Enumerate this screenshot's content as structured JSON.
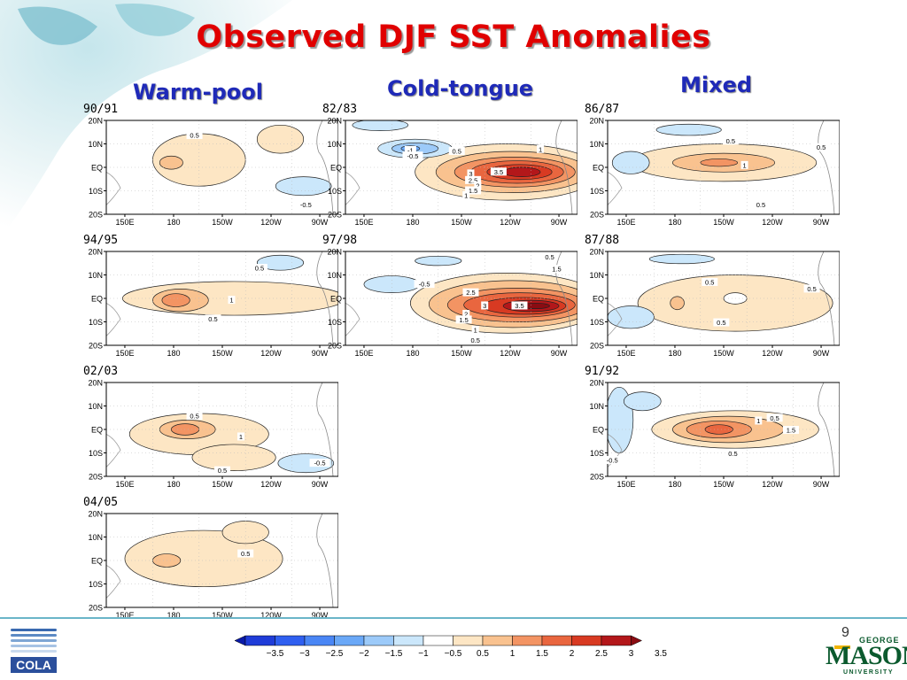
{
  "title": "Observed DJF SST Anomalies",
  "column_headers": {
    "warm_pool": "Warm-pool",
    "cold_tongue": "Cold-tongue",
    "mixed": "Mixed"
  },
  "axes": {
    "y_ticks": [
      "20N",
      "10N",
      "EQ",
      "10S",
      "20S"
    ],
    "x_ticks": [
      "150E",
      "180",
      "150W",
      "120W",
      "90W"
    ]
  },
  "panels": [
    {
      "id": "p9091",
      "label": "90/91",
      "group": "warm_pool",
      "pattern": "w1",
      "contour_labels": [
        {
          "t": "0.5",
          "lon": 0.38,
          "lat": 0.16
        },
        {
          "t": "-0.5",
          "lon": 0.86,
          "lat": 0.9
        }
      ]
    },
    {
      "id": "p9495",
      "label": "94/95",
      "group": "warm_pool",
      "pattern": "w2",
      "contour_labels": [
        {
          "t": "0.5",
          "lon": 0.66,
          "lat": 0.18
        },
        {
          "t": "1",
          "lon": 0.54,
          "lat": 0.52
        },
        {
          "t": "0.5",
          "lon": 0.46,
          "lat": 0.72
        }
      ]
    },
    {
      "id": "p0203",
      "label": "02/03",
      "group": "warm_pool",
      "pattern": "w3",
      "contour_labels": [
        {
          "t": "0.5",
          "lon": 0.38,
          "lat": 0.36
        },
        {
          "t": "1",
          "lon": 0.58,
          "lat": 0.58
        },
        {
          "t": "0.5",
          "lon": 0.5,
          "lat": 0.94
        },
        {
          "t": "-0.5",
          "lon": 0.92,
          "lat": 0.86
        }
      ]
    },
    {
      "id": "p0405",
      "label": "04/05",
      "group": "warm_pool",
      "pattern": "w4",
      "contour_labels": [
        {
          "t": "0.5",
          "lon": 0.6,
          "lat": 0.43
        }
      ]
    },
    {
      "id": "p8283",
      "label": "82/83",
      "group": "cold_tongue",
      "pattern": "c1",
      "contour_labels": [
        {
          "t": "-1",
          "lon": 0.28,
          "lat": 0.32
        },
        {
          "t": "-0.5",
          "lon": 0.29,
          "lat": 0.38
        },
        {
          "t": "0.5",
          "lon": 0.48,
          "lat": 0.33
        },
        {
          "t": "1",
          "lon": 0.84,
          "lat": 0.31
        },
        {
          "t": "3",
          "lon": 0.54,
          "lat": 0.57
        },
        {
          "t": "3.5",
          "lon": 0.66,
          "lat": 0.55
        },
        {
          "t": "2.5",
          "lon": 0.55,
          "lat": 0.64
        },
        {
          "t": "2",
          "lon": 0.57,
          "lat": 0.7
        },
        {
          "t": "1.5",
          "lon": 0.55,
          "lat": 0.75
        },
        {
          "t": "1",
          "lon": 0.52,
          "lat": 0.8
        }
      ]
    },
    {
      "id": "p9798",
      "label": "97/98",
      "group": "cold_tongue",
      "pattern": "c2",
      "contour_labels": [
        {
          "t": "0.5",
          "lon": 0.88,
          "lat": 0.06
        },
        {
          "t": "1.5",
          "lon": 0.91,
          "lat": 0.19
        },
        {
          "t": "-0.5",
          "lon": 0.34,
          "lat": 0.35
        },
        {
          "t": "2.5",
          "lon": 0.54,
          "lat": 0.44
        },
        {
          "t": "3",
          "lon": 0.6,
          "lat": 0.58
        },
        {
          "t": "3.5",
          "lon": 0.75,
          "lat": 0.58
        },
        {
          "t": "2",
          "lon": 0.52,
          "lat": 0.67
        },
        {
          "t": "1.5",
          "lon": 0.51,
          "lat": 0.73
        },
        {
          "t": "1",
          "lon": 0.56,
          "lat": 0.84
        },
        {
          "t": "0.5",
          "lon": 0.56,
          "lat": 0.95
        }
      ]
    },
    {
      "id": "p8687",
      "label": "86/87",
      "group": "mixed",
      "pattern": "m1",
      "contour_labels": [
        {
          "t": "0.5",
          "lon": 0.53,
          "lat": 0.22
        },
        {
          "t": "0.5",
          "lon": 0.92,
          "lat": 0.29
        },
        {
          "t": "1",
          "lon": 0.59,
          "lat": 0.48
        },
        {
          "t": "0.5",
          "lon": 0.66,
          "lat": 0.9
        }
      ]
    },
    {
      "id": "p8788",
      "label": "87/88",
      "group": "mixed",
      "pattern": "m2",
      "contour_labels": [
        {
          "t": "0.5",
          "lon": 0.44,
          "lat": 0.33
        },
        {
          "t": "0.5",
          "lon": 0.88,
          "lat": 0.4
        },
        {
          "t": "0.5",
          "lon": 0.49,
          "lat": 0.76
        }
      ]
    },
    {
      "id": "p9192",
      "label": "91/92",
      "group": "mixed",
      "pattern": "m3",
      "contour_labels": [
        {
          "t": "1",
          "lon": 0.65,
          "lat": 0.41
        },
        {
          "t": "0.5",
          "lon": 0.72,
          "lat": 0.38
        },
        {
          "t": "1.5",
          "lon": 0.79,
          "lat": 0.51
        },
        {
          "t": "0.5",
          "lon": 0.54,
          "lat": 0.76
        },
        {
          "t": "-0.5",
          "lon": 0.02,
          "lat": 0.83
        }
      ]
    }
  ],
  "colorbar": {
    "labels": [
      "-3.5",
      "-3",
      "-2.5",
      "-2",
      "-1.5",
      "-1",
      "-0.5",
      "0.5",
      "1",
      "1.5",
      "2",
      "2.5",
      "3",
      "3.5"
    ],
    "colors": [
      "#0a1aa8",
      "#1f3cd8",
      "#2f5ff0",
      "#4a86f5",
      "#6aa8f7",
      "#9ccaf9",
      "#cbe7fb",
      "#ffffff",
      "#fde6c4",
      "#f9c28f",
      "#f39463",
      "#e9663f",
      "#d83a22",
      "#b3171a",
      "#8a0c12"
    ]
  },
  "footer": {
    "page_number": "9",
    "cola_logo_text": "COLA",
    "gmu_logo": {
      "top": "GEORGE",
      "main": "MASON",
      "bottom": "UNIVERSITY"
    }
  }
}
